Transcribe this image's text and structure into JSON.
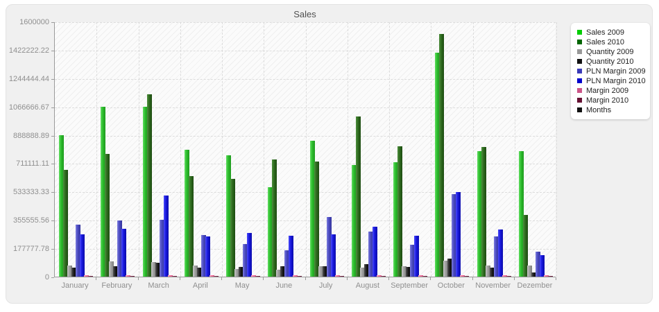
{
  "panel": {
    "title": "Sales"
  },
  "legend": {
    "items": [
      {
        "label": "Sales 2009",
        "color": "#00cc00"
      },
      {
        "label": "Sales 2010",
        "color": "#006600"
      },
      {
        "label": "Quantity 2009",
        "color": "#999999"
      },
      {
        "label": "Quantity 2010",
        "color": "#111111"
      },
      {
        "label": "PLN Margin 2009",
        "color": "#3a3ab8"
      },
      {
        "label": "PLN Margin 2010",
        "color": "#0000cc"
      },
      {
        "label": "Margin 2009",
        "color": "#cc5588"
      },
      {
        "label": "Margin 2010",
        "color": "#661133"
      },
      {
        "label": "Months",
        "color": "#111111"
      }
    ]
  },
  "chart_data": {
    "type": "bar",
    "title": "Sales",
    "xlabel": "",
    "ylabel": "",
    "ylim": [
      0,
      1600000
    ],
    "grid": true,
    "legend_position": "right",
    "yticks": [
      "1600000",
      "1422222.22",
      "1244444.44",
      "1066666.67",
      "888888.89",
      "711111.11",
      "533333.33",
      "355555.56",
      "177777.78",
      "0"
    ],
    "categories": [
      "January",
      "February",
      "March",
      "April",
      "May",
      "June",
      "July",
      "August",
      "September",
      "October",
      "November",
      "Dezember"
    ],
    "series": [
      {
        "name": "Sales 2009",
        "color": "#00cc00",
        "gradient": [
          "#63de63",
          "#2cbc2c",
          "#1e9a1e"
        ],
        "values": [
          885000,
          1065000,
          1067000,
          795000,
          759000,
          562000,
          853000,
          701000,
          718000,
          1404000,
          788000,
          787000
        ]
      },
      {
        "name": "Sales 2010",
        "color": "#006600",
        "gradient": [
          "#4f8f3f",
          "#2e6b1e",
          "#1c4a10"
        ],
        "values": [
          670000,
          770000,
          1145000,
          630000,
          615000,
          733000,
          723000,
          1005000,
          817000,
          1523000,
          814000,
          389000
        ]
      },
      {
        "name": "Quantity 2009",
        "color": "#999999",
        "gradient": [
          "#c6c6c6",
          "#a0a0a0",
          "#7d7d7d"
        ],
        "values": [
          70000,
          97000,
          91000,
          69000,
          48000,
          45000,
          66000,
          55000,
          65000,
          98000,
          68000,
          68000
        ]
      },
      {
        "name": "Quantity 2010",
        "color": "#111111",
        "gradient": [
          "#565656",
          "#1e1e1e",
          "#000000"
        ],
        "values": [
          55000,
          64000,
          85000,
          55000,
          59000,
          64000,
          64000,
          77000,
          59000,
          111000,
          58000,
          26000
        ]
      },
      {
        "name": "PLN Margin 2009",
        "color": "#3a3ab8",
        "gradient": [
          "#7d7dde",
          "#4a4ac0",
          "#34349c"
        ],
        "values": [
          325000,
          352000,
          358000,
          260000,
          205000,
          165000,
          374000,
          283000,
          200000,
          516000,
          253000,
          156000
        ]
      },
      {
        "name": "PLN Margin 2010",
        "color": "#0000cc",
        "gradient": [
          "#4d4dfa",
          "#1818dd",
          "#0b0bab"
        ],
        "values": [
          265000,
          298000,
          508000,
          252000,
          272000,
          256000,
          266000,
          315000,
          255000,
          529000,
          295000,
          135000
        ]
      },
      {
        "name": "Margin 2009",
        "color": "#cc5588",
        "gradient": [
          "#ffa6c1",
          "#ee6f9b",
          "#d65583"
        ],
        "values": [
          8000,
          8000,
          8000,
          8000,
          8000,
          8000,
          8000,
          8000,
          8000,
          8000,
          8000,
          8000
        ]
      },
      {
        "name": "Margin 2010",
        "color": "#661133",
        "gradient": [
          "#a34d6b",
          "#7a2547",
          "#5c1432"
        ],
        "values": [
          4000,
          4000,
          4000,
          4000,
          4000,
          4000,
          4000,
          4000,
          4000,
          4000,
          4000,
          4000
        ]
      },
      {
        "name": "Months",
        "color": "#111111",
        "gradient": [
          "#565656",
          "#1e1e1e",
          "#000000"
        ],
        "values": []
      }
    ]
  }
}
